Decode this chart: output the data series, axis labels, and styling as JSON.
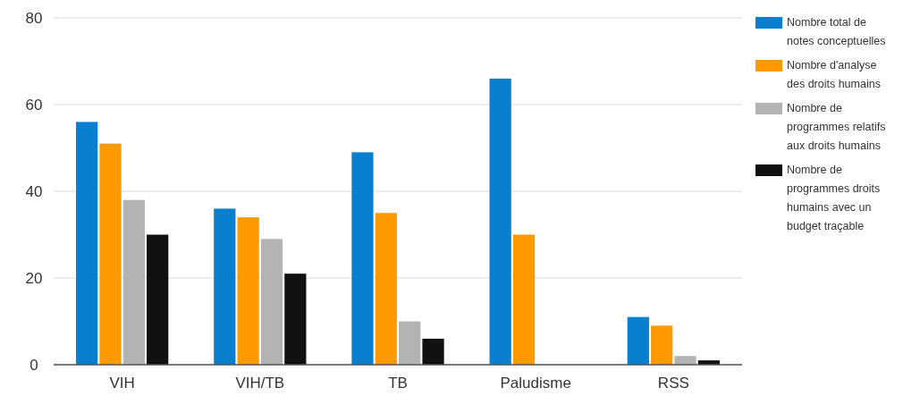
{
  "chart_data": {
    "type": "bar",
    "categories": [
      "VIH",
      "VIH/TB",
      "TB",
      "Paludisme",
      "RSS"
    ],
    "series": [
      {
        "name": "Nombre total de notes conceptuelles",
        "color": "#0a7fd0",
        "values": [
          56,
          36,
          49,
          66,
          11
        ]
      },
      {
        "name": "Nombre d'analyse des droits humains",
        "color": "#ff9900",
        "values": [
          51,
          34,
          35,
          30,
          9
        ]
      },
      {
        "name": "Nombre de programmes relatifs aux droits humains",
        "color": "#b3b3b3",
        "values": [
          38,
          29,
          10,
          0,
          2
        ]
      },
      {
        "name": "Nombre de programmes droits humains avec un budget traçable",
        "color": "#111111",
        "values": [
          30,
          21,
          6,
          0,
          1
        ]
      }
    ],
    "ylim": [
      0,
      80
    ],
    "yticks": [
      0,
      20,
      40,
      60,
      80
    ],
    "grid": "y",
    "legend": "right"
  }
}
